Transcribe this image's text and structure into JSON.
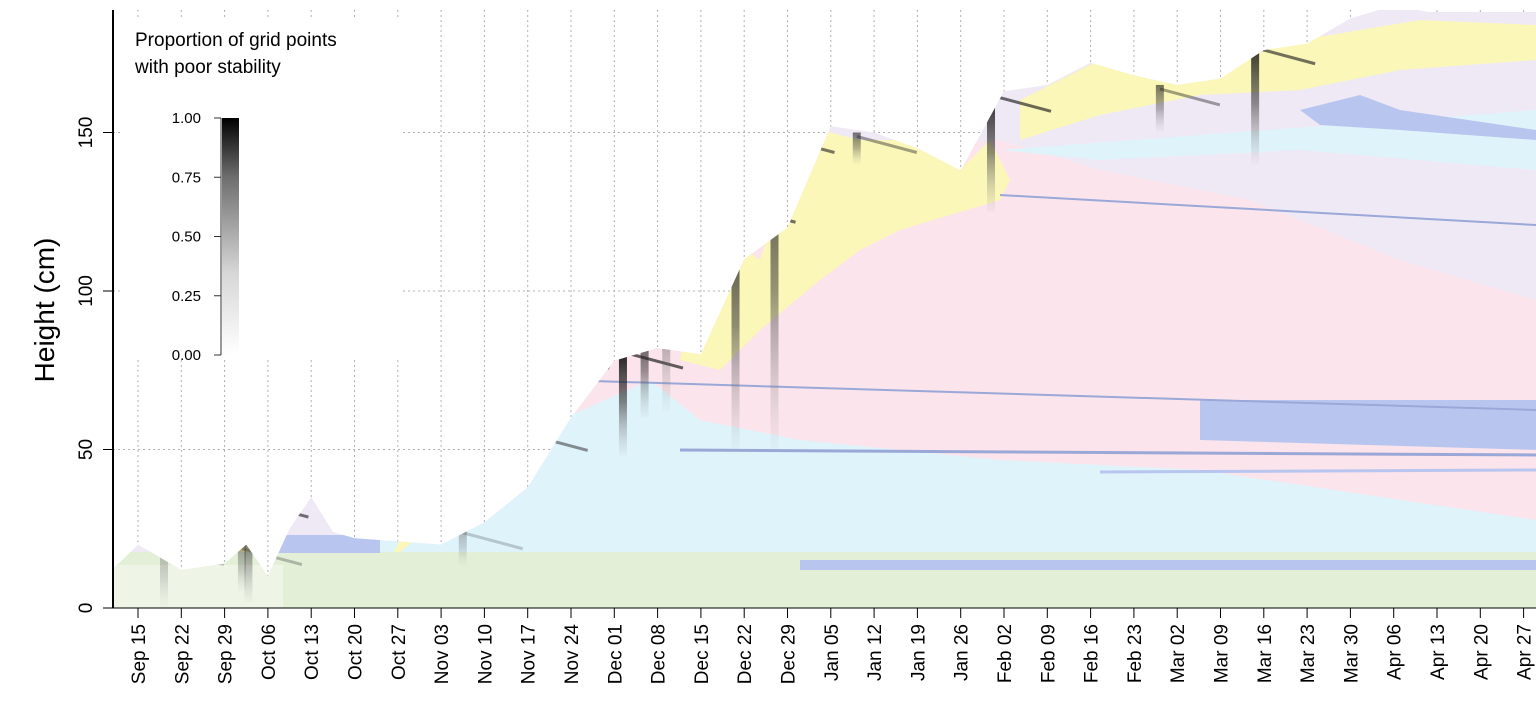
{
  "chart_data": {
    "type": "heatmap",
    "ylabel": "Height (cm)",
    "ylim": [
      0,
      190
    ],
    "y_ticks": [
      0,
      50,
      100,
      150
    ],
    "x_ticks": [
      "Sep 15",
      "Sep 22",
      "Sep 29",
      "Oct 06",
      "Oct 13",
      "Oct 20",
      "Oct 27",
      "Nov 03",
      "Nov 10",
      "Nov 17",
      "Nov 24",
      "Dec 01",
      "Dec 08",
      "Dec 15",
      "Dec 22",
      "Dec 29",
      "Jan 05",
      "Jan 12",
      "Jan 19",
      "Jan 26",
      "Feb 02",
      "Feb 09",
      "Feb 16",
      "Feb 23",
      "Mar 02",
      "Mar 09",
      "Mar 16",
      "Mar 23",
      "Mar 30",
      "Apr 06",
      "Apr 13",
      "Apr 20",
      "Apr 27"
    ],
    "grid": true,
    "legend": {
      "title_lines": [
        "Proportion of grid points",
        "with poor stability"
      ],
      "ticks": [
        "1.00",
        "0.75",
        "0.50",
        "0.25",
        "0.00"
      ],
      "placement": "top-left"
    },
    "snow_height": [
      [
        -1.5,
        0
      ],
      [
        0,
        20
      ],
      [
        1,
        12
      ],
      [
        2,
        14
      ],
      [
        2.5,
        20
      ],
      [
        3,
        10
      ],
      [
        3.5,
        25
      ],
      [
        4,
        35
      ],
      [
        4.5,
        24
      ],
      [
        5,
        22
      ],
      [
        6,
        21
      ],
      [
        7,
        20
      ],
      [
        8,
        27
      ],
      [
        9,
        38
      ],
      [
        10,
        60
      ],
      [
        11,
        78
      ],
      [
        12,
        82
      ],
      [
        13,
        80
      ],
      [
        14,
        110
      ],
      [
        15,
        120
      ],
      [
        16,
        152
      ],
      [
        17,
        150
      ],
      [
        18,
        145
      ],
      [
        19,
        138
      ],
      [
        20,
        163
      ],
      [
        21,
        165
      ],
      [
        22,
        172
      ],
      [
        23,
        168
      ],
      [
        24,
        165
      ],
      [
        25,
        167
      ],
      [
        26,
        176
      ],
      [
        27,
        178
      ],
      [
        28,
        186
      ],
      [
        29,
        190
      ],
      [
        29.8,
        188
      ]
    ],
    "weak_layer_events": [
      {
        "x": 0.6,
        "y_bottom": 0,
        "y_top": 20,
        "intensity": 0.3
      },
      {
        "x": 2.4,
        "y_bottom": 5,
        "y_top": 20,
        "intensity": 0.4
      },
      {
        "x": 2.55,
        "y_bottom": 2,
        "y_top": 35,
        "intensity": 0.9
      },
      {
        "x": 7.5,
        "y_bottom": 13,
        "y_top": 25,
        "intensity": 0.3
      },
      {
        "x": 8.2,
        "y_bottom": 52,
        "y_top": 76,
        "intensity": 0.95
      },
      {
        "x": 9.0,
        "y_bottom": 52,
        "y_top": 56,
        "intensity": 0.7
      },
      {
        "x": 9.5,
        "y_bottom": 70,
        "y_top": 82,
        "intensity": 0.8
      },
      {
        "x": 11.2,
        "y_bottom": 48,
        "y_top": 82,
        "intensity": 1.0
      },
      {
        "x": 11.7,
        "y_bottom": 60,
        "y_top": 90,
        "intensity": 0.85
      },
      {
        "x": 12.2,
        "y_bottom": 62,
        "y_top": 110,
        "intensity": 0.7
      },
      {
        "x": 13.8,
        "y_bottom": 50,
        "y_top": 128,
        "intensity": 0.9
      },
      {
        "x": 14.7,
        "y_bottom": 50,
        "y_top": 150,
        "intensity": 0.85
      },
      {
        "x": 16.6,
        "y_bottom": 140,
        "y_top": 150,
        "intensity": 0.6
      },
      {
        "x": 19.7,
        "y_bottom": 125,
        "y_top": 163,
        "intensity": 0.95
      },
      {
        "x": 23.6,
        "y_bottom": 150,
        "y_top": 165,
        "intensity": 0.6
      },
      {
        "x": 25.8,
        "y_bottom": 140,
        "y_top": 178,
        "intensity": 0.9
      }
    ]
  }
}
